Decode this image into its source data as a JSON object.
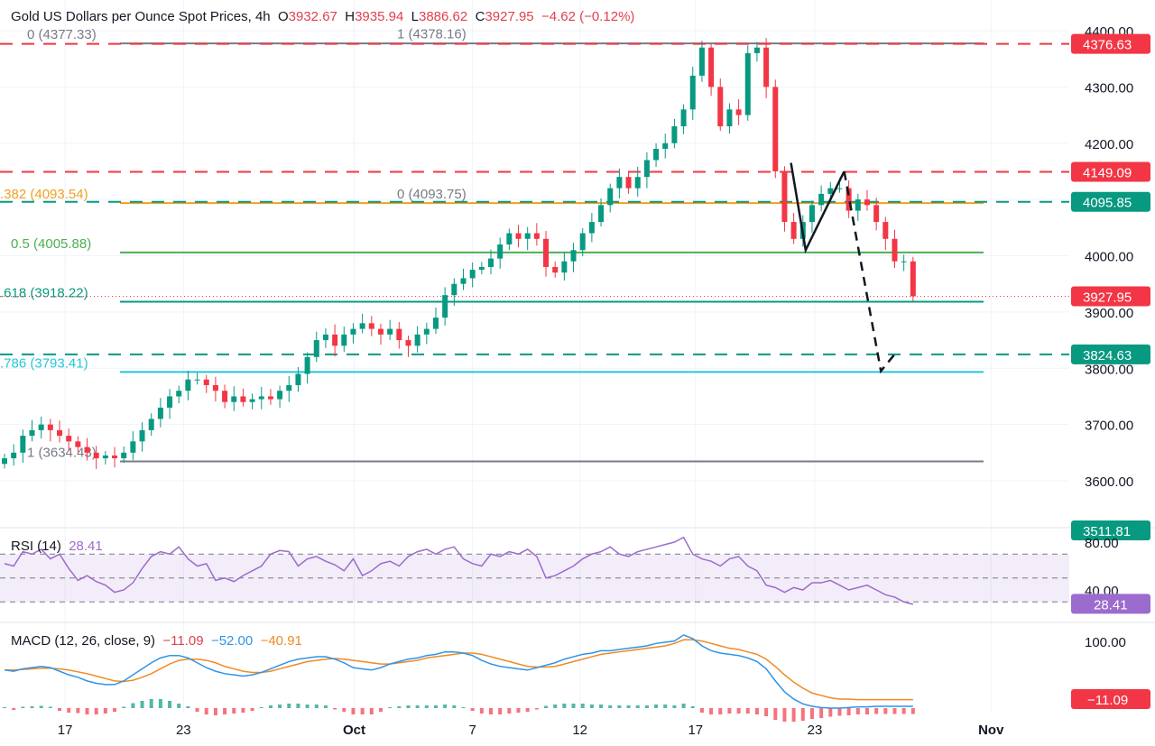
{
  "header": {
    "title": "Gold US Dollars per Ounce Spot Prices, 4h",
    "o_label": "O",
    "o": "3932.67",
    "h_label": "H",
    "h": "3935.94",
    "l_label": "L",
    "l": "3886.62",
    "c_label": "C",
    "c": "3927.95",
    "change": "−4.62 (−0.12%)"
  },
  "rsi": {
    "label": "RSI (14)",
    "value": "28.41"
  },
  "macd": {
    "label": "MACD (12, 26, close, 9)",
    "hist": "−11.09",
    "macd": "−52.00",
    "signal": "−40.91"
  },
  "chart_data": [
    {
      "type": "candlestick",
      "title": "Gold US Dollars per Ounce Spot Prices, 4h",
      "ylim": [
        3510,
        4420
      ],
      "closes": [
        3640,
        3650,
        3680,
        3690,
        3700,
        3690,
        3680,
        3670,
        3660,
        3650,
        3640,
        3645,
        3640,
        3650,
        3670,
        3690,
        3710,
        3730,
        3750,
        3760,
        3780,
        3780,
        3770,
        3760,
        3740,
        3750,
        3740,
        3745,
        3750,
        3745,
        3760,
        3770,
        3790,
        3820,
        3850,
        3860,
        3840,
        3860,
        3870,
        3880,
        3870,
        3860,
        3870,
        3850,
        3840,
        3860,
        3870,
        3890,
        3930,
        3950,
        3960,
        3975,
        3980,
        3995,
        4020,
        4040,
        4030,
        4040,
        4030,
        3980,
        3970,
        3990,
        4010,
        4040,
        4060,
        4090,
        4120,
        4140,
        4120,
        4140,
        4170,
        4190,
        4200,
        4230,
        4260,
        4320,
        4370,
        4300,
        4230,
        4260,
        4250,
        4360,
        4370,
        4300,
        4150,
        4060,
        4030,
        4060,
        4090,
        4110,
        4120,
        4120,
        4080,
        4100,
        4090,
        4060,
        4030,
        3990,
        3990,
        3928
      ],
      "up_color": "#089981",
      "down_color": "#f23645",
      "x_ticks": [
        {
          "label": "17",
          "bar": 6.6
        },
        {
          "label": "23",
          "bar": 19.5
        },
        {
          "label": "Oct",
          "bar": 38.1,
          "bold": true
        },
        {
          "label": "7",
          "bar": 51
        },
        {
          "label": "12",
          "bar": 62.7
        },
        {
          "label": "17",
          "bar": 75.3
        },
        {
          "label": "23",
          "bar": 88.3
        },
        {
          "label": "Nov",
          "bar": 107.5,
          "bold": true
        }
      ],
      "y_ticks": [
        "4400.00",
        "4300.00",
        "4200.00",
        "4000.00",
        "3900.00",
        "3800.00",
        "3700.00",
        "3600.00"
      ],
      "price_badges": [
        {
          "value": "4376.63",
          "color": "#f23645"
        },
        {
          "value": "4149.09",
          "color": "#f23645"
        },
        {
          "value": "4095.85",
          "color": "#089981"
        },
        {
          "value": "3927.95",
          "color": "#f23645"
        },
        {
          "value": "3824.63",
          "color": "#089981"
        },
        {
          "value": "3511.81",
          "color": "#089981"
        }
      ],
      "horizontal_lines": [
        {
          "price": 4376.63,
          "color": "#f23645",
          "style": "dashed"
        },
        {
          "price": 4149.09,
          "color": "#f23645",
          "style": "dashed"
        },
        {
          "price": 4095.85,
          "color": "#089981",
          "style": "dashed"
        },
        {
          "price": 3824.63,
          "color": "#089981",
          "style": "dashed"
        },
        {
          "price": 3927.95,
          "color": "#f23645",
          "style": "dotted"
        }
      ],
      "fib_levels": [
        {
          "label": "0 (4377.33)",
          "price": 4377.33,
          "color": "#787b86"
        },
        {
          "label": "1 (4378.16)",
          "price": 4378.16,
          "color": "#787b86",
          "label_only": true
        },
        {
          "label": ".382 (4093.54)",
          "price": 4093.54,
          "color": "#f0a020"
        },
        {
          "label": "0 (4093.75)",
          "price": 4093.75,
          "color": "#787b86",
          "label_only": true
        },
        {
          "label": "0.5 (4005.88)",
          "price": 4005.88,
          "color": "#4caf50"
        },
        {
          "label": ".618 (3918.22)",
          "price": 3918.22,
          "color": "#089981"
        },
        {
          "label": ".786 (3793.41)",
          "price": 3793.41,
          "color": "#26c6da"
        },
        {
          "label": "1 (3634.43)",
          "price": 3634.43,
          "color": "#787b86"
        }
      ],
      "drawings": [
        {
          "style": "solid",
          "points": [
            [
              85.7,
              4165
            ],
            [
              87.3,
              4010
            ],
            [
              91.5,
              4150
            ]
          ]
        },
        {
          "style": "dashed",
          "points": [
            [
              91.5,
              4150
            ],
            [
              95.5,
              3795
            ],
            [
              97,
              3825
            ]
          ]
        }
      ]
    },
    {
      "type": "line",
      "name": "RSI (14)",
      "ylim": [
        20,
        90
      ],
      "bands": [
        70,
        50,
        30
      ],
      "y_ticks": [
        "80.00",
        "40.00"
      ],
      "badge": "28.41",
      "color": "#9c6bce",
      "values": [
        62,
        60,
        72,
        70,
        74,
        66,
        70,
        58,
        48,
        52,
        47,
        44,
        38,
        40,
        46,
        58,
        68,
        72,
        70,
        76,
        66,
        60,
        62,
        48,
        50,
        47,
        52,
        56,
        60,
        70,
        73,
        72,
        60,
        66,
        68,
        64,
        61,
        56,
        66,
        52,
        56,
        62,
        64,
        60,
        68,
        72,
        74,
        70,
        74,
        76,
        66,
        62,
        60,
        70,
        68,
        72,
        70,
        74,
        68,
        50,
        52,
        56,
        60,
        66,
        70,
        72,
        76,
        70,
        68,
        72,
        74,
        76,
        78,
        80,
        84,
        70,
        66,
        64,
        60,
        66,
        68,
        60,
        56,
        44,
        42,
        38,
        42,
        40,
        46,
        46,
        48,
        44,
        40,
        42,
        44,
        40,
        36,
        34,
        30,
        28
      ]
    },
    {
      "type": "line",
      "name": "MACD (12, 26, close, 9)",
      "ylim": [
        -60,
        110
      ],
      "y_ticks": [
        "100.00"
      ],
      "badge": "−11.09",
      "macd_color": "#2f94e8",
      "signal_color": "#f08a24",
      "macd": [
        8,
        6,
        10,
        12,
        14,
        12,
        6,
        0,
        -4,
        -10,
        -14,
        -16,
        -16,
        -10,
        0,
        10,
        20,
        28,
        32,
        32,
        28,
        20,
        12,
        6,
        2,
        0,
        -2,
        0,
        4,
        10,
        16,
        22,
        26,
        28,
        30,
        30,
        26,
        20,
        12,
        10,
        8,
        12,
        18,
        22,
        26,
        28,
        32,
        34,
        38,
        38,
        36,
        32,
        24,
        18,
        14,
        12,
        10,
        8,
        12,
        16,
        20,
        26,
        30,
        34,
        36,
        40,
        40,
        42,
        44,
        46,
        48,
        52,
        54,
        56,
        66,
        60,
        48,
        40,
        36,
        34,
        32,
        28,
        22,
        10,
        -10,
        -28,
        -40,
        -48,
        -52,
        -54,
        -55,
        -55,
        -54,
        -53,
        -53,
        -52,
        -52,
        -52,
        -52,
        -52
      ],
      "signal": [
        8,
        8,
        9,
        10,
        11,
        11,
        10,
        8,
        5,
        2,
        -2,
        -6,
        -10,
        -11,
        -9,
        -4,
        2,
        10,
        18,
        24,
        26,
        26,
        24,
        20,
        14,
        10,
        6,
        4,
        4,
        6,
        10,
        14,
        18,
        22,
        24,
        26,
        27,
        26,
        24,
        22,
        20,
        18,
        18,
        20,
        22,
        24,
        28,
        30,
        32,
        34,
        36,
        36,
        34,
        30,
        26,
        22,
        18,
        14,
        13,
        13,
        14,
        18,
        22,
        26,
        30,
        34,
        36,
        38,
        40,
        42,
        44,
        46,
        48,
        52,
        58,
        58,
        56,
        52,
        48,
        44,
        42,
        38,
        34,
        26,
        14,
        0,
        -12,
        -22,
        -30,
        -34,
        -38,
        -40,
        -40,
        -41,
        -41,
        -41,
        -41,
        -41,
        -41,
        -41
      ]
    }
  ]
}
